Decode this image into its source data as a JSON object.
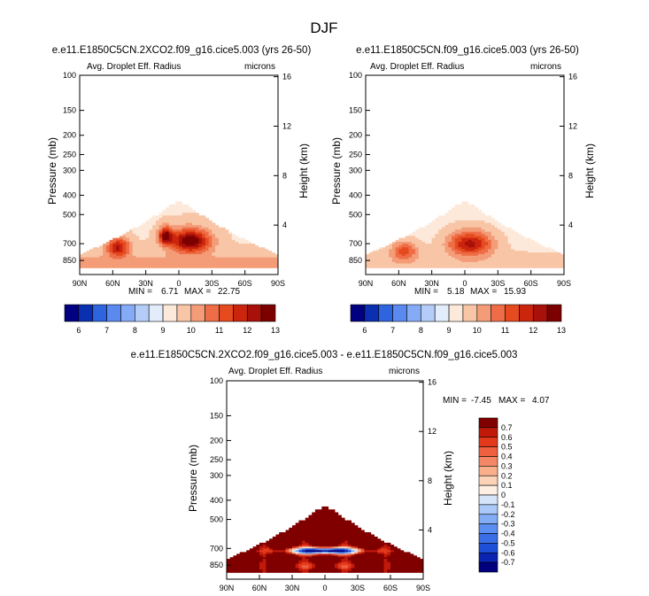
{
  "figure_title": "DJF",
  "colors": {
    "scale13": [
      "#000080",
      "#0a2fb0",
      "#2f64df",
      "#5a89f0",
      "#86abf6",
      "#b4cdf8",
      "#e3ecfb",
      "#fde9da",
      "#f8c5a6",
      "#f39c77",
      "#ee6d47",
      "#e54b1f",
      "#cb250e",
      "#a8100a",
      "#7d0000"
    ],
    "diff": [
      "#00007e",
      "#0a23b0",
      "#1e4fd8",
      "#3a6ee6",
      "#5a8ef0",
      "#82adf5",
      "#aac9f8",
      "#d6e4fa",
      "#fff0e3",
      "#fcd3b7",
      "#f8af8a",
      "#f48866",
      "#ef6040",
      "#e33a1e",
      "#c21a0a",
      "#800000"
    ]
  },
  "chart_data": [
    {
      "type": "heatmap",
      "title": "e.e11.E1850C5CN.2XCO2.f09_g16.cice5.003 (yrs 26-50)",
      "left_label": "Avg. Droplet Eff. Radius",
      "units": "microns",
      "ylabel": "Pressure (mb)",
      "ylabel_right": "Height (km)",
      "xticks": [
        "90N",
        "60N",
        "30N",
        "0",
        "30S",
        "60S",
        "90S"
      ],
      "yticks": [
        "100",
        "150",
        "200",
        "250",
        "300",
        "400",
        "500",
        "700",
        "850"
      ],
      "yticks_right": [
        "16",
        "12",
        "8",
        "4"
      ],
      "min_label": "MIN =",
      "min": "6.71",
      "max_label": "MAX =",
      "max": "22.75",
      "colorbar_labels": [
        "6",
        "7",
        "8",
        "9",
        "10",
        "11",
        "12",
        "13"
      ]
    },
    {
      "type": "heatmap",
      "title": "e.e11.E1850C5CN.f09_g16.cice5.003 (yrs 26-50)",
      "left_label": "Avg. Droplet Eff. Radius",
      "units": "microns",
      "ylabel": "Pressure (mb)",
      "ylabel_right": "Height (km)",
      "xticks": [
        "90N",
        "60N",
        "30N",
        "0",
        "30S",
        "60S",
        "90S"
      ],
      "yticks": [
        "100",
        "150",
        "200",
        "250",
        "300",
        "400",
        "500",
        "700",
        "850"
      ],
      "yticks_right": [
        "16",
        "12",
        "8",
        "4"
      ],
      "min_label": "MIN =",
      "min": "5.18",
      "max_label": "MAX =",
      "max": "15.93",
      "colorbar_labels": [
        "6",
        "7",
        "8",
        "9",
        "10",
        "11",
        "12",
        "13"
      ]
    },
    {
      "type": "heatmap",
      "title": "e.e11.E1850C5CN.2XCO2.f09_g16.cice5.003 - e.e11.E1850C5CN.f09_g16.cice5.003",
      "left_label": "Avg. Droplet Eff. Radius",
      "units": "microns",
      "ylabel": "Pressure (mb)",
      "ylabel_right": "Height (km)",
      "xticks": [
        "90N",
        "60N",
        "30N",
        "0",
        "30S",
        "60S",
        "90S"
      ],
      "yticks": [
        "100",
        "150",
        "200",
        "250",
        "300",
        "400",
        "500",
        "700",
        "850"
      ],
      "yticks_right": [
        "16",
        "12",
        "8",
        "4"
      ],
      "min_label": "MIN =",
      "min": "-7.45",
      "max_label": "MAX =",
      "max": "4.07",
      "colorbar_labels": [
        "0.7",
        "0.6",
        "0.5",
        "0.4",
        "0.3",
        "0.2",
        "0.1",
        "0",
        "-0.1",
        "-0.2",
        "-0.3",
        "-0.4",
        "-0.5",
        "-0.6",
        "-0.7"
      ]
    }
  ]
}
